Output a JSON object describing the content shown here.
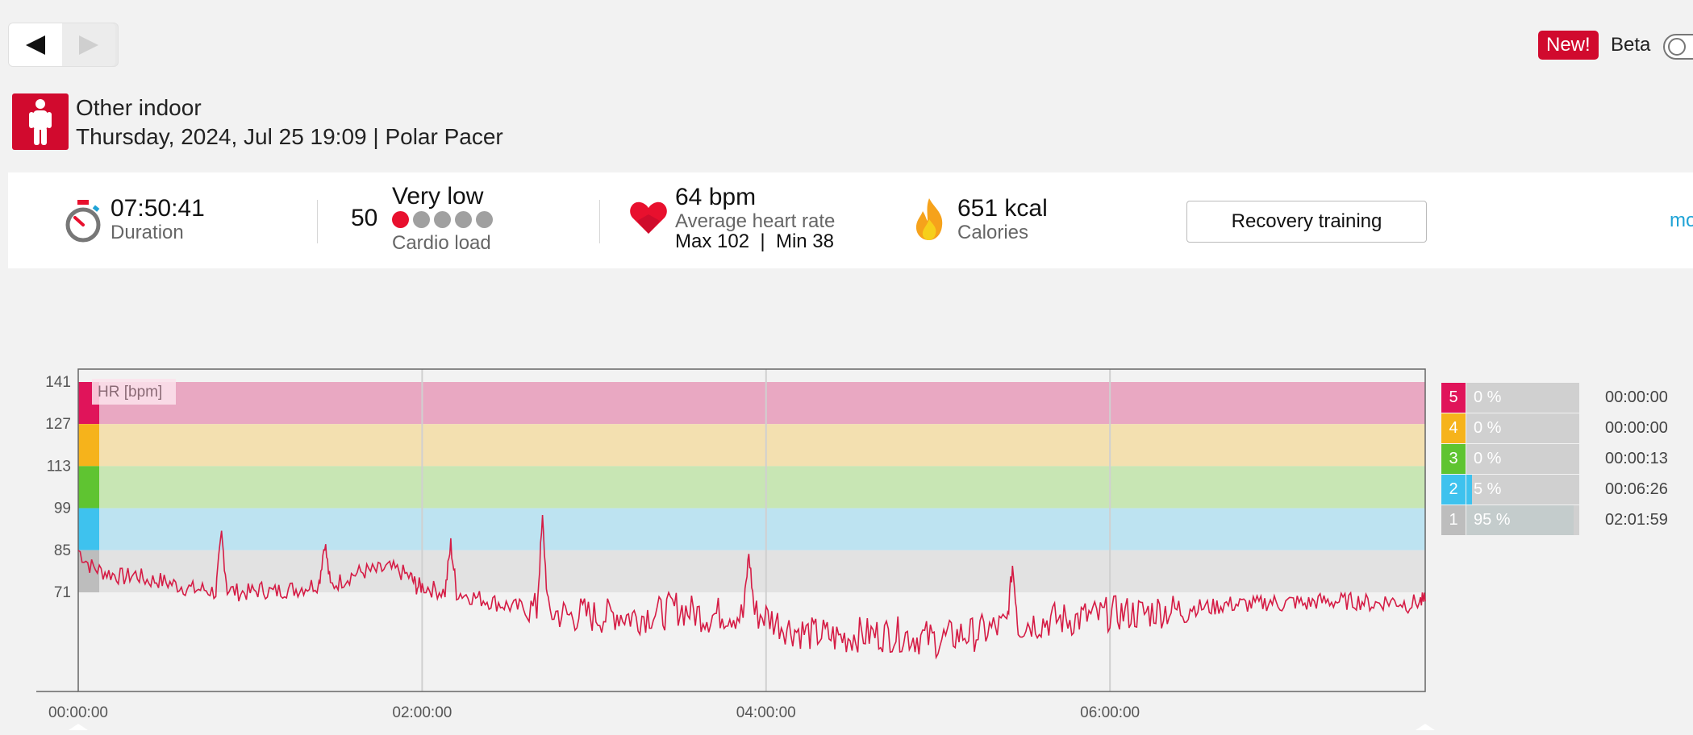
{
  "nav": {
    "prev": "previous",
    "next": "next"
  },
  "top_right": {
    "new_badge": "New!",
    "beta_label": "Beta"
  },
  "session": {
    "sport": "Other indoor",
    "date_device": "Thursday, 2024, Jul 25 19:09 | Polar Pacer"
  },
  "summary": {
    "duration_value": "07:50:41",
    "duration_label": "Duration",
    "cardio_value": "50",
    "cardio_level": "Very low",
    "cardio_label": "Cardio load",
    "cardio_dots_filled": 1,
    "cardio_dots_total": 5,
    "hr_value": "64 bpm",
    "hr_label": "Average heart rate",
    "hr_max_min": "Max 102  |  Min 38",
    "calories_value": "651 kcal",
    "calories_label": "Calories",
    "benefit_button": "Recovery training",
    "more_link": "mo"
  },
  "chart_data": {
    "type": "line",
    "series_label": "HR [bpm]",
    "y_ticks": [
      141,
      127,
      113,
      99,
      85,
      71
    ],
    "x_ticks": [
      "00:00:00",
      "02:00:00",
      "04:00:00",
      "06:00:00"
    ],
    "zone_bands": [
      {
        "zone": 5,
        "from": 127,
        "to": 141,
        "color": "#e9a8c2",
        "marker": "#e0145a"
      },
      {
        "zone": 4,
        "from": 113,
        "to": 127,
        "color": "#f3e0b0",
        "marker": "#f6b31b"
      },
      {
        "zone": 3,
        "from": 99,
        "to": 113,
        "color": "#c8e6b4",
        "marker": "#5fc431"
      },
      {
        "zone": 2,
        "from": 85,
        "to": 99,
        "color": "#bde3f1",
        "marker": "#3ec2ee"
      },
      {
        "zone": 1,
        "from": 71,
        "to": 85,
        "color": "#e2e2e2",
        "marker": "#bdbdbd"
      }
    ],
    "line_color": "#d51c45",
    "hr_points": [
      [
        0,
        85
      ],
      [
        4,
        80
      ],
      [
        8,
        78
      ],
      [
        12,
        77
      ],
      [
        16,
        76
      ],
      [
        20,
        77
      ],
      [
        24,
        75
      ],
      [
        28,
        75
      ],
      [
        32,
        74
      ],
      [
        36,
        73
      ],
      [
        40,
        72
      ],
      [
        44,
        72
      ],
      [
        48,
        71
      ],
      [
        50,
        90
      ],
      [
        52,
        72
      ],
      [
        56,
        71
      ],
      [
        60,
        71
      ],
      [
        64,
        72
      ],
      [
        68,
        71
      ],
      [
        72,
        72
      ],
      [
        76,
        72
      ],
      [
        80,
        73
      ],
      [
        84,
        74
      ],
      [
        86,
        88
      ],
      [
        88,
        73
      ],
      [
        92,
        75
      ],
      [
        96,
        77
      ],
      [
        100,
        78
      ],
      [
        104,
        78
      ],
      [
        108,
        79
      ],
      [
        112,
        78
      ],
      [
        116,
        76
      ],
      [
        118,
        73
      ],
      [
        120,
        73
      ],
      [
        124,
        72
      ],
      [
        128,
        71
      ],
      [
        130,
        87
      ],
      [
        132,
        71
      ],
      [
        136,
        70
      ],
      [
        140,
        69
      ],
      [
        144,
        68
      ],
      [
        148,
        67
      ],
      [
        152,
        66
      ],
      [
        156,
        66
      ],
      [
        160,
        65
      ],
      [
        162,
        95
      ],
      [
        164,
        64
      ],
      [
        168,
        64
      ],
      [
        172,
        63
      ],
      [
        176,
        64
      ],
      [
        180,
        63
      ],
      [
        184,
        63
      ],
      [
        188,
        64
      ],
      [
        192,
        63
      ],
      [
        196,
        63
      ],
      [
        200,
        64
      ],
      [
        204,
        64
      ],
      [
        208,
        66
      ],
      [
        212,
        65
      ],
      [
        216,
        64
      ],
      [
        220,
        63
      ],
      [
        224,
        64
      ],
      [
        228,
        64
      ],
      [
        232,
        63
      ],
      [
        234,
        84
      ],
      [
        236,
        64
      ],
      [
        240,
        63
      ],
      [
        244,
        61
      ],
      [
        248,
        59
      ],
      [
        252,
        58
      ],
      [
        256,
        57
      ],
      [
        260,
        57
      ],
      [
        264,
        56
      ],
      [
        268,
        56
      ],
      [
        272,
        57
      ],
      [
        276,
        57
      ],
      [
        280,
        57
      ],
      [
        284,
        57
      ],
      [
        288,
        57
      ],
      [
        292,
        56
      ],
      [
        296,
        56
      ],
      [
        300,
        55
      ],
      [
        304,
        56
      ],
      [
        308,
        57
      ],
      [
        312,
        57
      ],
      [
        316,
        58
      ],
      [
        320,
        59
      ],
      [
        324,
        60
      ],
      [
        326,
        80
      ],
      [
        328,
        60
      ],
      [
        332,
        61
      ],
      [
        336,
        61
      ],
      [
        340,
        62
      ],
      [
        344,
        62
      ],
      [
        348,
        62
      ],
      [
        352,
        63
      ],
      [
        356,
        63
      ],
      [
        360,
        64
      ],
      [
        364,
        64
      ],
      [
        368,
        64
      ],
      [
        372,
        64
      ],
      [
        376,
        65
      ],
      [
        380,
        65
      ],
      [
        384,
        65
      ],
      [
        388,
        66
      ],
      [
        392,
        66
      ],
      [
        396,
        66
      ],
      [
        400,
        67
      ],
      [
        404,
        67
      ],
      [
        408,
        67
      ],
      [
        412,
        67
      ],
      [
        416,
        68
      ],
      [
        420,
        67
      ],
      [
        424,
        68
      ],
      [
        428,
        67
      ],
      [
        432,
        68
      ],
      [
        436,
        68
      ],
      [
        440,
        68
      ],
      [
        444,
        68
      ],
      [
        448,
        68
      ],
      [
        452,
        67
      ],
      [
        456,
        68
      ],
      [
        460,
        68
      ],
      [
        464,
        67
      ],
      [
        468,
        68
      ],
      [
        470,
        68
      ]
    ],
    "x_range_minutes": [
      0,
      470
    ],
    "y_range": [
      38,
      141
    ]
  },
  "zones": [
    {
      "num": "5",
      "pct": "0 %",
      "frac": 0,
      "time": "00:00:00",
      "color": "#e0145a"
    },
    {
      "num": "4",
      "pct": "0 %",
      "frac": 0,
      "time": "00:00:00",
      "color": "#f6b31b"
    },
    {
      "num": "3",
      "pct": "0 %",
      "frac": 0,
      "time": "00:00:13",
      "color": "#5fc431"
    },
    {
      "num": "2",
      "pct": "5 %",
      "frac": 0.05,
      "time": "00:06:26",
      "color": "#3ec2ee"
    },
    {
      "num": "1",
      "pct": "95 %",
      "frac": 0.95,
      "time": "02:01:59",
      "color": "#bdbdbd"
    }
  ]
}
